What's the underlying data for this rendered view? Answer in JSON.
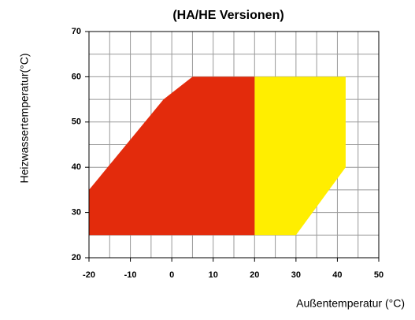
{
  "chart_data": {
    "type": "polygon",
    "title": "(HA/HE Versionen)",
    "x_label": "Außentemperatur (°C)",
    "y_label": "Heizwassertemperatur(°C)",
    "xlim": [
      -20,
      50
    ],
    "xticks": [
      -20,
      -10,
      0,
      10,
      20,
      30,
      40,
      50
    ],
    "ylim": [
      20,
      70
    ],
    "yticks": [
      20,
      30,
      40,
      50,
      60,
      70
    ],
    "xgrid": [
      -20,
      -15,
      -10,
      -5,
      0,
      5,
      10,
      15,
      20,
      25,
      30,
      35,
      40,
      45,
      50
    ],
    "ygrid": [
      20,
      25,
      30,
      35,
      40,
      45,
      50,
      55,
      60,
      65,
      70
    ],
    "grid": true,
    "series": [
      {
        "color": "#ffee00",
        "x": [
          20,
          42,
          42,
          30,
          20
        ],
        "values": [
          60,
          60,
          40,
          25,
          25
        ]
      },
      {
        "color": "#e32b0c",
        "x": [
          -20,
          -20,
          -2,
          5,
          20,
          20
        ],
        "values": [
          25,
          35,
          55,
          60,
          60,
          25
        ]
      }
    ]
  }
}
